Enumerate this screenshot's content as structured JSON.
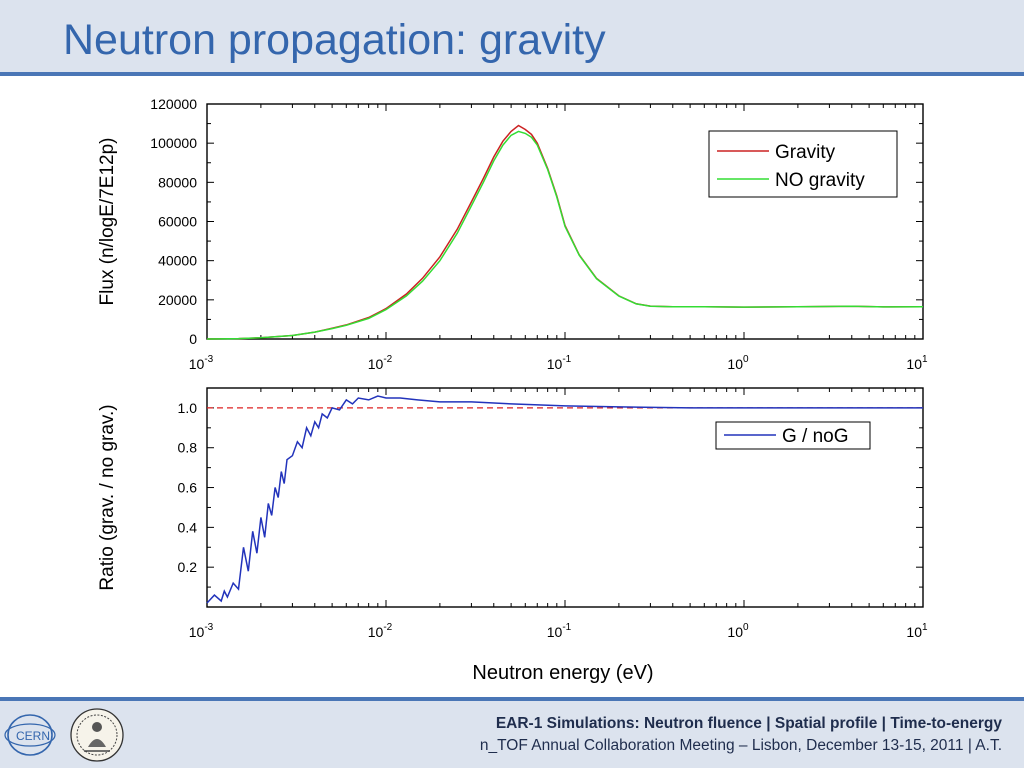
{
  "slide": {
    "title": "Neutron propagation: gravity",
    "footer_line_1": "EAR-1 Simulations: Neutron fluence | Spatial profile | Time-to-energy",
    "footer_line_2": "n_TOF Annual Collaboration Meeting – Lisbon, December 13-15, 2011 | A.T.",
    "logos": [
      "cern-logo",
      "archimedes-seal-logo"
    ],
    "colors": {
      "title": "#3466ad",
      "bar": "#4a76b6",
      "band": "#dce3ee"
    }
  },
  "chart_data": [
    {
      "type": "line",
      "xscale": "log",
      "xlim": [
        0.001,
        10
      ],
      "ylim": [
        0,
        120000
      ],
      "x_ticks": [
        {
          "base": "10",
          "exp": "-3",
          "value": 0.001
        },
        {
          "base": "10",
          "exp": "-2",
          "value": 0.01
        },
        {
          "base": "10",
          "exp": "-1",
          "value": 0.1
        },
        {
          "base": "10",
          "exp": "0",
          "value": 1
        },
        {
          "base": "10",
          "exp": "1",
          "value": 10
        }
      ],
      "y_ticks": [
        "0",
        "20000",
        "40000",
        "60000",
        "80000",
        "100000",
        "120000"
      ],
      "ylabel": "Flux (n/logE/7E12p)",
      "legend_position": "top-right",
      "grid": false,
      "series": [
        {
          "name": "Gravity",
          "color": "#cc2222",
          "x": [
            0.001,
            0.0015,
            0.002,
            0.003,
            0.004,
            0.005,
            0.006,
            0.008,
            0.01,
            0.013,
            0.016,
            0.02,
            0.025,
            0.03,
            0.035,
            0.04,
            0.045,
            0.05,
            0.055,
            0.06,
            0.065,
            0.07,
            0.08,
            0.09,
            0.1,
            0.12,
            0.15,
            0.2,
            0.25,
            0.3,
            0.4,
            0.6,
            1,
            2,
            4,
            6,
            10
          ],
          "y": [
            0,
            200,
            600,
            1800,
            3500,
            5500,
            7200,
            11000,
            15500,
            23000,
            31000,
            42000,
            56000,
            70000,
            82000,
            93000,
            101000,
            106000,
            109000,
            107000,
            104500,
            100000,
            87000,
            73000,
            58000,
            43000,
            31000,
            22000,
            18000,
            16800,
            16500,
            16500,
            16300,
            16500,
            16700,
            16400,
            16500
          ]
        },
        {
          "name": "NO gravity",
          "color": "#33dd33",
          "x": [
            0.001,
            0.0015,
            0.002,
            0.003,
            0.004,
            0.005,
            0.006,
            0.008,
            0.01,
            0.013,
            0.016,
            0.02,
            0.025,
            0.03,
            0.035,
            0.04,
            0.045,
            0.05,
            0.055,
            0.06,
            0.065,
            0.07,
            0.08,
            0.09,
            0.1,
            0.12,
            0.15,
            0.2,
            0.25,
            0.3,
            0.4,
            0.6,
            1,
            2,
            4,
            6,
            10
          ],
          "y": [
            0,
            200,
            600,
            1800,
            3500,
            5300,
            7000,
            10500,
            15000,
            22000,
            29500,
            40000,
            54000,
            68000,
            80000,
            91000,
            99000,
            104000,
            106000,
            105000,
            103000,
            99000,
            86500,
            72500,
            57500,
            42800,
            30800,
            21900,
            17900,
            16700,
            16500,
            16500,
            16300,
            16500,
            16700,
            16400,
            16500
          ]
        }
      ]
    },
    {
      "type": "line",
      "xscale": "log",
      "xlim": [
        0.001,
        10
      ],
      "ylim": [
        0,
        1.1
      ],
      "x_ticks": [
        {
          "base": "10",
          "exp": "-3",
          "value": 0.001
        },
        {
          "base": "10",
          "exp": "-2",
          "value": 0.01
        },
        {
          "base": "10",
          "exp": "-1",
          "value": 0.1
        },
        {
          "base": "10",
          "exp": "0",
          "value": 1
        },
        {
          "base": "10",
          "exp": "1",
          "value": 10
        }
      ],
      "y_ticks": [
        "0.2",
        "0.4",
        "0.6",
        "0.8",
        "1.0"
      ],
      "xlabel": "Neutron energy (eV)",
      "ylabel": "Ratio (grav. / no grav.)",
      "legend_position": "top-right",
      "grid": false,
      "reference_line": {
        "y": 1.0,
        "color": "#dd2222",
        "style": "dashed"
      },
      "series": [
        {
          "name": "G / noG",
          "color": "#2233bb",
          "x": [
            0.001,
            0.0011,
            0.0012,
            0.00125,
            0.0013,
            0.0014,
            0.0015,
            0.0016,
            0.0017,
            0.0018,
            0.0019,
            0.002,
            0.0021,
            0.0022,
            0.0023,
            0.0024,
            0.0025,
            0.0026,
            0.0027,
            0.0028,
            0.003,
            0.0032,
            0.0034,
            0.0036,
            0.0038,
            0.004,
            0.0042,
            0.0044,
            0.0047,
            0.005,
            0.0055,
            0.006,
            0.0065,
            0.007,
            0.008,
            0.009,
            0.01,
            0.012,
            0.015,
            0.02,
            0.03,
            0.05,
            0.1,
            0.2,
            0.5,
            1,
            2,
            5,
            10
          ],
          "y": [
            0.02,
            0.06,
            0.03,
            0.08,
            0.05,
            0.12,
            0.09,
            0.3,
            0.18,
            0.38,
            0.27,
            0.45,
            0.35,
            0.52,
            0.46,
            0.6,
            0.55,
            0.68,
            0.62,
            0.74,
            0.76,
            0.83,
            0.8,
            0.9,
            0.86,
            0.93,
            0.9,
            0.97,
            0.95,
            1.0,
            0.99,
            1.04,
            1.02,
            1.05,
            1.04,
            1.06,
            1.05,
            1.05,
            1.04,
            1.03,
            1.03,
            1.02,
            1.01,
            1.005,
            1.0,
            1.0,
            1.0,
            1.0,
            1.0
          ]
        }
      ]
    }
  ]
}
